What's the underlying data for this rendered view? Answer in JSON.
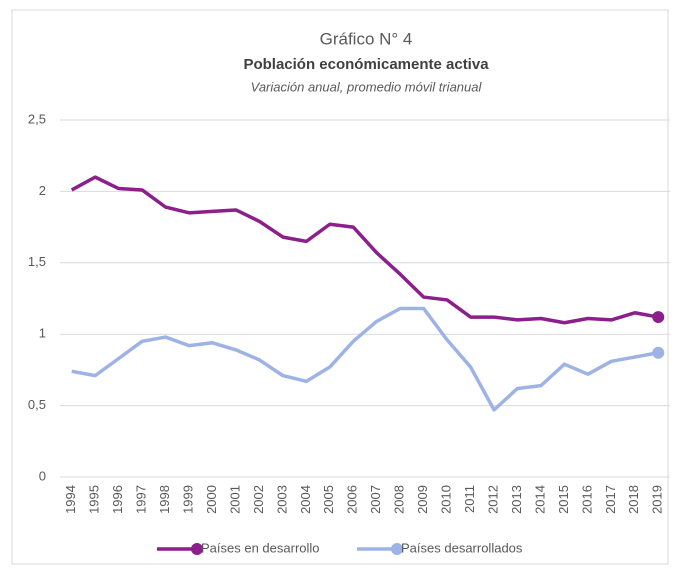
{
  "chart_data": {
    "type": "line",
    "title": "Gráfico N° 4",
    "subtitle": "Población económicamente activa",
    "note": "Variación anual, promedio móvil trianual",
    "categories": [
      "1994",
      "1995",
      "1996",
      "1997",
      "1998",
      "1999",
      "2000",
      "2001",
      "2002",
      "2003",
      "2004",
      "2005",
      "2006",
      "2007",
      "2008",
      "2009",
      "2010",
      "2011",
      "2012",
      "2013",
      "2014",
      "2015",
      "2016",
      "2017",
      "2018",
      "2019"
    ],
    "series": [
      {
        "name": "Países en desarrollo",
        "color": "#8b1f8c",
        "values": [
          2.01,
          2.1,
          2.02,
          2.01,
          1.89,
          1.85,
          1.86,
          1.87,
          1.79,
          1.68,
          1.65,
          1.77,
          1.75,
          1.57,
          1.42,
          1.26,
          1.24,
          1.12,
          1.12,
          1.1,
          1.11,
          1.08,
          1.11,
          1.1,
          1.15,
          1.12
        ]
      },
      {
        "name": "Países desarrollados",
        "color": "#9db3e6",
        "values": [
          0.74,
          0.71,
          0.83,
          0.95,
          0.98,
          0.92,
          0.94,
          0.89,
          0.82,
          0.71,
          0.67,
          0.77,
          0.95,
          1.09,
          1.18,
          1.18,
          0.96,
          0.77,
          0.47,
          0.62,
          0.64,
          0.79,
          0.72,
          0.81,
          0.84,
          0.87
        ]
      }
    ],
    "ylim": [
      0,
      2.5
    ],
    "yticks": [
      0,
      {
        "value": 0.5,
        "label": "0,5"
      },
      1,
      {
        "value": 1.5,
        "label": "1,5"
      },
      2,
      {
        "value": 2.5,
        "label": "2,5"
      }
    ],
    "grid": true,
    "legend": "bottom"
  }
}
